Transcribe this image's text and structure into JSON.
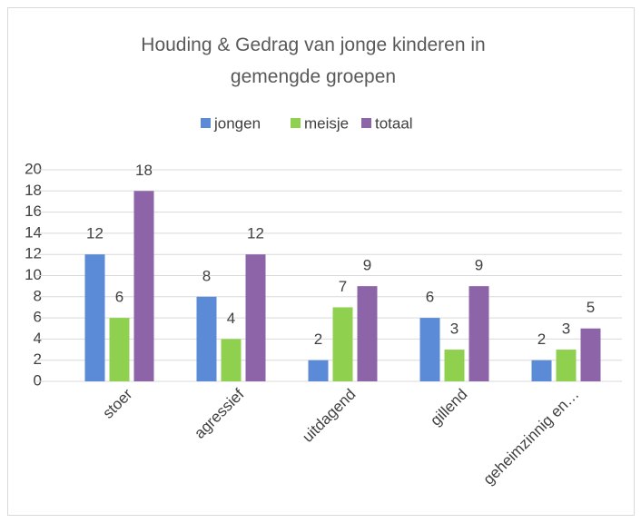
{
  "chart_data": {
    "type": "bar",
    "title": "Houding & Gedrag van jonge kinderen in gemengde groepen",
    "categories": [
      "stoer",
      "agressief",
      "uitdagend",
      "gillend",
      "geheimzinnig en…"
    ],
    "series": [
      {
        "name": "jongen",
        "color": "#5b8bd6",
        "values": [
          12,
          8,
          2,
          6,
          2
        ]
      },
      {
        "name": "meisje",
        "color": "#8fd14f",
        "values": [
          6,
          4,
          7,
          3,
          3
        ]
      },
      {
        "name": "totaal",
        "color": "#8e64a8",
        "values": [
          18,
          12,
          9,
          9,
          5
        ]
      }
    ],
    "ylim": [
      0,
      20
    ],
    "yticks": [
      0,
      2,
      4,
      6,
      8,
      10,
      12,
      14,
      16,
      18,
      20
    ],
    "grid": true,
    "legend": "top"
  }
}
